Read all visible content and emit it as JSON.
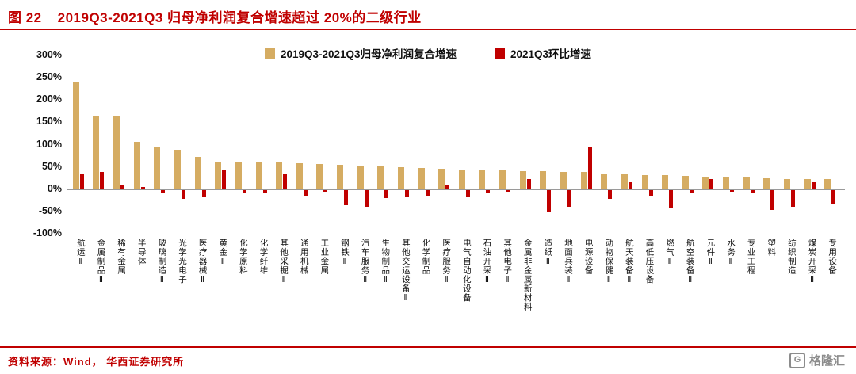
{
  "figure": {
    "label": "图 22",
    "title": "2019Q3-2021Q3 归母净利润复合增速超过 20%的二级行业"
  },
  "footer": {
    "source": "资料来源：Wind， 华西证券研究所",
    "logo_mark": "G",
    "logo_text": "格隆汇"
  },
  "colors": {
    "accent_red": "#c00000",
    "cagr_bar": "#d5ac62",
    "qoq_bar": "#c00000",
    "logo_gray": "#8c8c8c"
  },
  "chart_data": {
    "type": "bar",
    "title": "2019Q3-2021Q3 归母净利润复合增速超过 20%的二级行业",
    "xlabel": "",
    "ylabel": "",
    "unit": "%",
    "ylim": [
      -100,
      300
    ],
    "yticks": [
      "300%",
      "250%",
      "200%",
      "150%",
      "100%",
      "50%",
      "0%",
      "-50%",
      "-100%"
    ],
    "grid": false,
    "legend_position": "top-center",
    "categories": [
      "航运Ⅱ",
      "金属制品Ⅱ",
      "稀有金属",
      "半导体",
      "玻璃制造Ⅱ",
      "光学光电子",
      "医疗器械Ⅱ",
      "黄金Ⅱ",
      "化学原料",
      "化学纤维",
      "其他采掘Ⅱ",
      "通用机械",
      "工业金属",
      "钢铁Ⅱ",
      "汽车服务Ⅱ",
      "生物制品Ⅱ",
      "其他交运设备Ⅱ",
      "化学制品",
      "医疗服务Ⅱ",
      "电气自动化设备",
      "石油开采Ⅱ",
      "其他电子Ⅱ",
      "金属非金属新材料",
      "造纸Ⅱ",
      "地面兵装Ⅱ",
      "电源设备",
      "动物保健Ⅱ",
      "航天装备Ⅱ",
      "高低压设备",
      "燃气Ⅱ",
      "航空装备Ⅱ",
      "元件Ⅱ",
      "水务Ⅱ",
      "专业工程",
      "塑料",
      "纺织制造",
      "煤炭开采Ⅱ",
      "专用设备"
    ],
    "series": [
      {
        "name": "2019Q3-2021Q3归母净利润复合增速",
        "color": "#d5ac62",
        "values": [
          240,
          165,
          163,
          107,
          95,
          88,
          73,
          62,
          62,
          61,
          60,
          58,
          57,
          55,
          53,
          52,
          50,
          48,
          45,
          43,
          42,
          42,
          41,
          40,
          38,
          38,
          35,
          33,
          32,
          31,
          30,
          28,
          27,
          26,
          25,
          23,
          22,
          22
        ]
      },
      {
        "name": "2021Q3环比增速",
        "color": "#c00000",
        "values": [
          33,
          38,
          8,
          5,
          -8,
          -20,
          -15,
          42,
          -5,
          -8,
          33,
          -13,
          -4,
          -35,
          -38,
          -18,
          -15,
          -12,
          8,
          -15,
          -5,
          -4,
          22,
          -48,
          -38,
          95,
          -20,
          15,
          -12,
          -40,
          -8,
          22,
          -4,
          -5,
          -45,
          -38,
          15,
          -30
        ]
      }
    ]
  }
}
